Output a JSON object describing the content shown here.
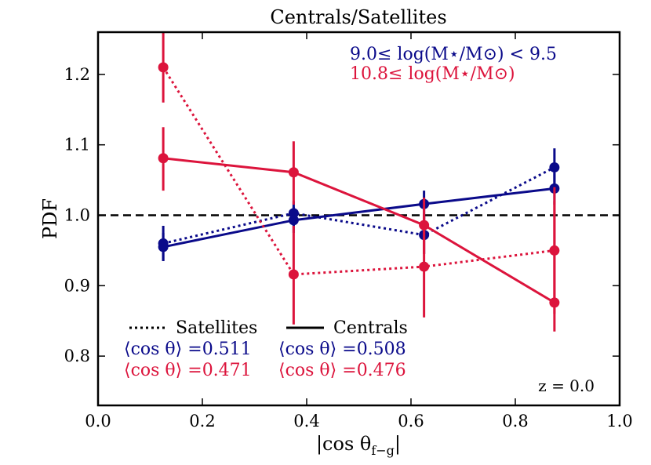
{
  "chart_data": {
    "type": "line",
    "title": "Centrals/Satellites",
    "xlabel": "|cos θ",
    "xlabel_sub": "f−g",
    "xlabel_close": "|",
    "ylabel": "PDF",
    "xlim": [
      0.0,
      1.0
    ],
    "ylim": [
      0.73,
      1.26
    ],
    "xticks": [
      0.0,
      0.2,
      0.4,
      0.6,
      0.8,
      1.0
    ],
    "xtick_labels": [
      "0.0",
      "0.2",
      "0.4",
      "0.6",
      "0.8",
      "1.0"
    ],
    "yticks": [
      0.8,
      0.9,
      1.0,
      1.1,
      1.2
    ],
    "ytick_labels": [
      "0.8",
      "0.9",
      "1.0",
      "1.1",
      "1.2"
    ],
    "x": [
      0.125,
      0.375,
      0.625,
      0.875
    ],
    "reference_line": {
      "y": 1.0,
      "style": "dashed",
      "color": "#000000"
    },
    "series": [
      {
        "name": "Satellites 9.0–9.5",
        "linestyle": "dotted",
        "color": "#0a0a8a",
        "values": [
          0.96,
          1.003,
          0.972,
          1.068
        ],
        "err_low": [
          0.935,
          0.985,
          0.945,
          1.04
        ],
        "err_high": [
          0.985,
          1.02,
          1.0,
          1.095
        ]
      },
      {
        "name": "Centrals 9.0–9.5",
        "linestyle": "solid",
        "color": "#0a0a8a",
        "values": [
          0.955,
          0.993,
          1.016,
          1.038
        ],
        "err_low": [
          0.935,
          0.975,
          0.995,
          1.015
        ],
        "err_high": [
          0.975,
          1.012,
          1.035,
          1.06
        ]
      },
      {
        "name": "Satellites ≥10.8",
        "linestyle": "dotted",
        "color": "#dc143c",
        "values": [
          1.21,
          0.916,
          0.927,
          0.95
        ],
        "err_low": [
          1.16,
          0.845,
          0.855,
          0.86
        ],
        "err_high": [
          1.26,
          0.985,
          1.0,
          1.04
        ]
      },
      {
        "name": "Centrals ≥10.8",
        "linestyle": "solid",
        "color": "#dc143c",
        "values": [
          1.081,
          1.061,
          0.986,
          0.876
        ],
        "err_low": [
          1.035,
          1.015,
          0.945,
          0.835
        ],
        "err_high": [
          1.125,
          1.105,
          1.025,
          1.02
        ]
      }
    ],
    "mass_labels": [
      {
        "text": "9.0≤ log(M⋆/M⊙) < 9.5",
        "color": "#0a0a8a"
      },
      {
        "text": "10.8≤ log(M⋆/M⊙)",
        "color": "#dc143c"
      }
    ],
    "legend": {
      "placement": "bottom-left",
      "satellites_label": "Satellites",
      "centrals_label": "Centrals",
      "sat_mean_blue": "⟨cos θ⟩ =0.511",
      "sat_mean_red": "⟨cos θ⟩ =0.471",
      "cen_mean_blue": "⟨cos θ⟩ =0.508",
      "cen_mean_red": "⟨cos θ⟩ =0.476"
    },
    "annotation": "z = 0.0"
  }
}
